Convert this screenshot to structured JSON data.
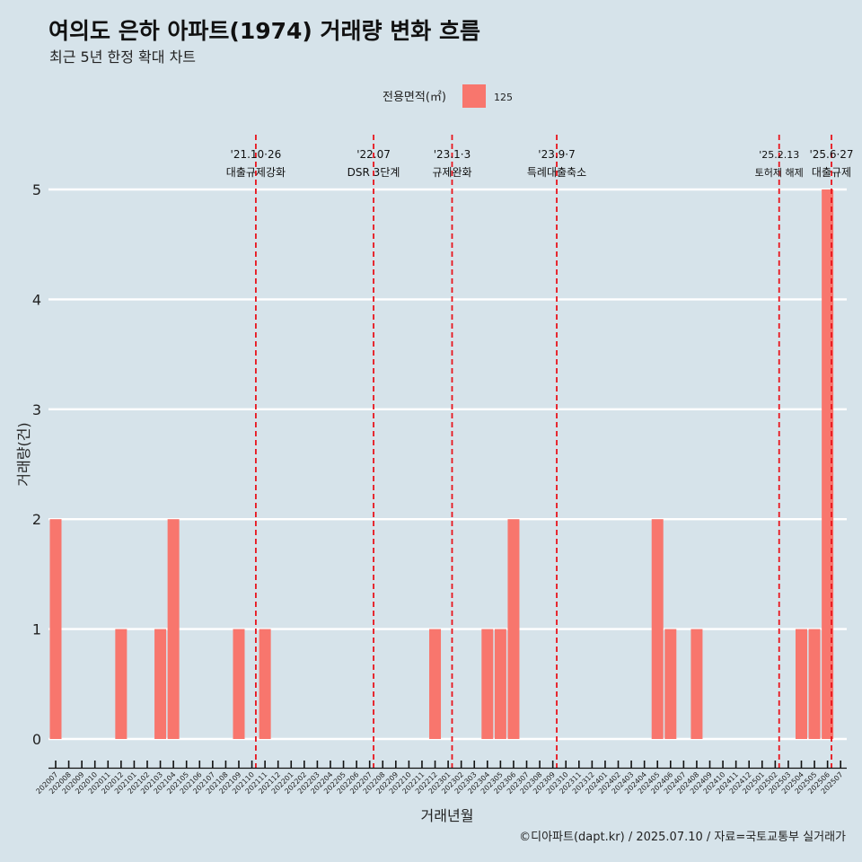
{
  "title": "여의도 은하 아파트(1974) 거래량 변화 흐름",
  "subtitle": "최근 5년 한정 확대 차트",
  "caption": "©디아파트(dapt.kr) / 2025.07.10 / 자료=국토교통부 실거래가",
  "colors": {
    "background": "#d6e3ea",
    "bar": "#f8766d",
    "event_line": "#e8141c",
    "grid": "#ffffff"
  },
  "chart_data": {
    "type": "bar",
    "title": "여의도 은하 아파트(1974) 거래량 변화 흐름",
    "subtitle": "최근 5년 한정 확대 차트",
    "xlabel": "거래년월",
    "ylabel": "거래량(건)",
    "ylim": [
      0,
      5
    ],
    "yticks": [
      0,
      1,
      2,
      3,
      4,
      5
    ],
    "grid": true,
    "legend": {
      "position": "top",
      "title": "전용면적(㎡)",
      "entries": [
        "125"
      ]
    },
    "categories": [
      "202007",
      "202008",
      "202009",
      "202010",
      "202011",
      "202012",
      "202101",
      "202102",
      "202103",
      "202104",
      "202105",
      "202106",
      "202107",
      "202108",
      "202109",
      "202110",
      "202111",
      "202112",
      "202201",
      "202202",
      "202203",
      "202204",
      "202205",
      "202206",
      "202207",
      "202208",
      "202209",
      "202210",
      "202211",
      "202212",
      "202301",
      "202302",
      "202303",
      "202304",
      "202305",
      "202306",
      "202307",
      "202308",
      "202309",
      "202310",
      "202311",
      "202312",
      "202401",
      "202402",
      "202403",
      "202404",
      "202405",
      "202406",
      "202407",
      "202408",
      "202409",
      "202410",
      "202411",
      "202412",
      "202501",
      "202502",
      "202503",
      "202504",
      "202505",
      "202506",
      "202507"
    ],
    "series": [
      {
        "name": "125",
        "values": [
          2,
          0,
          0,
          0,
          0,
          1,
          0,
          0,
          1,
          2,
          0,
          0,
          0,
          0,
          1,
          0,
          1,
          0,
          0,
          0,
          0,
          0,
          0,
          0,
          0,
          0,
          0,
          0,
          0,
          1,
          0,
          0,
          0,
          1,
          1,
          2,
          0,
          0,
          0,
          0,
          0,
          0,
          0,
          0,
          0,
          0,
          2,
          1,
          0,
          1,
          0,
          0,
          0,
          0,
          0,
          0,
          0,
          1,
          1,
          5,
          0
        ]
      }
    ],
    "annotations": [
      {
        "date": "'21.10·26",
        "label": "대출규제강화",
        "position": 15.3
      },
      {
        "date": "'22.07",
        "label": "DSR 3단계",
        "position": 24.3
      },
      {
        "date": "'23.1·3",
        "label": "규제완화",
        "position": 30.3
      },
      {
        "date": "'23.9·7",
        "label": "특례대출축소",
        "position": 38.3
      },
      {
        "date": "'25.2.13",
        "label": "토허제 해제",
        "position": 55.3
      },
      {
        "date": "'25.6·27",
        "label": "대출규제",
        "position": 59.3
      }
    ]
  }
}
